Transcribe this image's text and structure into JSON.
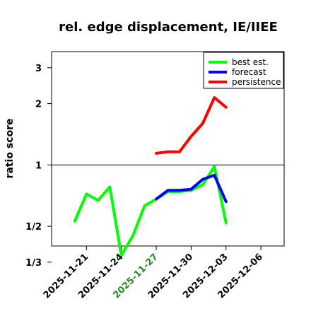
{
  "chart_data": {
    "type": "line",
    "title": "rel. edge displacement, IE/IIEE",
    "ylabel": "ratio score",
    "xlabel": "",
    "y_scale": "log2",
    "ylim": [
      0.4,
      3.6
    ],
    "xlim": [
      "2025-11-18",
      "2025-12-08"
    ],
    "y_ticks": [
      {
        "value": 0.3333,
        "label": "1/3"
      },
      {
        "value": 0.5,
        "label": "1/2"
      },
      {
        "value": 1,
        "label": "1"
      },
      {
        "value": 2,
        "label": "2"
      },
      {
        "value": 3,
        "label": "3"
      }
    ],
    "x_ticks": [
      {
        "date": "2025-11-21",
        "label": "2025-11-21",
        "color": "#000000"
      },
      {
        "date": "2025-11-24",
        "label": "2025-11-24",
        "color": "#000000"
      },
      {
        "date": "2025-11-27",
        "label": "2025-11-27",
        "color": "#228B22"
      },
      {
        "date": "2025-11-30",
        "label": "2025-11-30",
        "color": "#000000"
      },
      {
        "date": "2025-12-03",
        "label": "2025-12-03",
        "color": "#000000"
      },
      {
        "date": "2025-12-06",
        "label": "2025-12-06",
        "color": "#000000"
      }
    ],
    "reference_line": {
      "y": 1,
      "color": "#000000"
    },
    "grid": false,
    "legend_position": "top-right",
    "series": [
      {
        "name": "best est.",
        "color": "#00ff00",
        "x": [
          "2025-11-20",
          "2025-11-21",
          "2025-11-22",
          "2025-11-23",
          "2025-11-24",
          "2025-11-25",
          "2025-11-26",
          "2025-11-27",
          "2025-11-28",
          "2025-11-29",
          "2025-11-30",
          "2025-12-01",
          "2025-12-02",
          "2025-12-03"
        ],
        "y": [
          0.53,
          0.72,
          0.67,
          0.78,
          0.36,
          0.45,
          0.63,
          0.68,
          0.74,
          0.74,
          0.75,
          0.8,
          0.98,
          0.52
        ]
      },
      {
        "name": "forecast",
        "color": "#0000ff",
        "x": [
          "2025-11-27",
          "2025-11-28",
          "2025-11-29",
          "2025-11-30",
          "2025-12-01",
          "2025-12-02",
          "2025-12-03"
        ],
        "y": [
          0.68,
          0.75,
          0.75,
          0.76,
          0.85,
          0.89,
          0.66
        ]
      },
      {
        "name": "persistence",
        "color": "#ff0000",
        "x": [
          "2025-11-27",
          "2025-11-28",
          "2025-11-29",
          "2025-11-30",
          "2025-12-01",
          "2025-12-02",
          "2025-12-03"
        ],
        "y": [
          1.14,
          1.16,
          1.16,
          1.38,
          1.6,
          2.14,
          1.92
        ]
      }
    ]
  }
}
